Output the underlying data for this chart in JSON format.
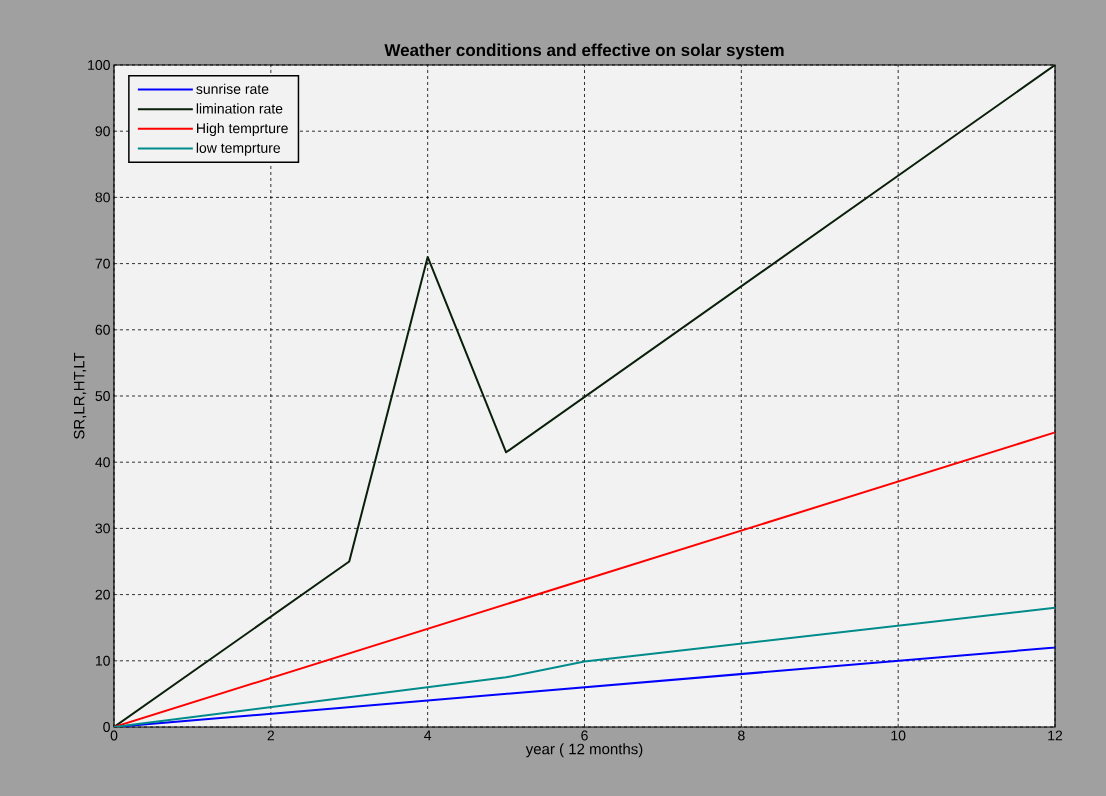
{
  "chart_data": {
    "type": "line",
    "title": "Weather conditions and effective on solar system",
    "xlabel": "year ( 12 months)",
    "ylabel": "SR,LR,HT,LT",
    "xlim": [
      0,
      12
    ],
    "ylim": [
      0,
      100
    ],
    "xticks": [
      0,
      2,
      4,
      6,
      8,
      10,
      12
    ],
    "yticks": [
      0,
      10,
      20,
      30,
      40,
      50,
      60,
      70,
      80,
      90,
      100
    ],
    "grid": true,
    "legend": "top left",
    "marker": "none",
    "line_style": "solid",
    "series": [
      {
        "name": "sunrise rate",
        "color": "#0000ff",
        "x": [
          0,
          12
        ],
        "values": [
          0,
          12
        ]
      },
      {
        "name": "limination rate",
        "color": "#0a1f0a",
        "x": [
          0,
          3,
          4,
          5,
          12
        ],
        "values": [
          0,
          25,
          71,
          41.5,
          100
        ]
      },
      {
        "name": "High temprture",
        "color": "#ff0000",
        "x": [
          0,
          12
        ],
        "values": [
          0,
          44.5
        ]
      },
      {
        "name": "low temprture",
        "color": "#008b8b",
        "x": [
          0,
          5,
          6,
          12
        ],
        "values": [
          0,
          7.5,
          9.9,
          18
        ]
      }
    ]
  }
}
